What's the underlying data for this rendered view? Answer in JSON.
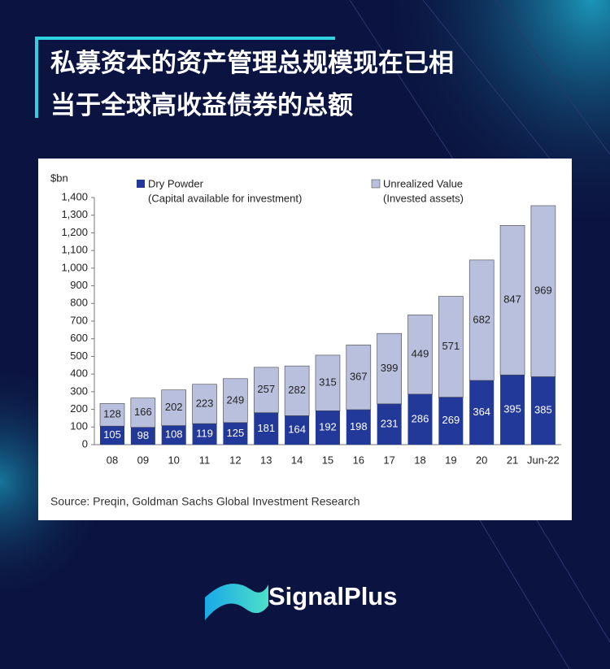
{
  "header": {
    "title_lines": [
      "私募资本的资产管理总规模现在已相",
      "当于全球高收益债券的总额"
    ]
  },
  "chart_data": {
    "type": "stacked_bar",
    "y_unit": "$bn",
    "categories": [
      "08",
      "09",
      "10",
      "11",
      "12",
      "13",
      "14",
      "15",
      "16",
      "17",
      "18",
      "19",
      "20",
      "21",
      "Jun-22"
    ],
    "series": [
      {
        "name": "Dry Powder",
        "description": "(Capital available for investment)",
        "color": "#22399a",
        "values": [
          105,
          98,
          108,
          119,
          125,
          181,
          164,
          192,
          198,
          231,
          286,
          269,
          364,
          395,
          385
        ]
      },
      {
        "name": "Unrealized Value",
        "description": "(Invested assets)",
        "color": "#b9c0de",
        "values": [
          128,
          166,
          202,
          223,
          249,
          257,
          282,
          315,
          367,
          399,
          449,
          571,
          682,
          847,
          969
        ]
      }
    ],
    "ylim": [
      0,
      1400
    ],
    "yticks": [
      0,
      100,
      200,
      300,
      400,
      500,
      600,
      700,
      800,
      900,
      {
        "value": 1000,
        "label": "1,000"
      },
      {
        "value": 1100,
        "label": "1,100"
      },
      {
        "value": 1200,
        "label": "1,200"
      },
      {
        "value": 1300,
        "label": "1,300"
      },
      {
        "value": 1400,
        "label": "1,400"
      }
    ],
    "source": "Source: Preqin, Goldman Sachs Global Investment Research"
  },
  "footer": {
    "brand": "SignalPlus"
  }
}
